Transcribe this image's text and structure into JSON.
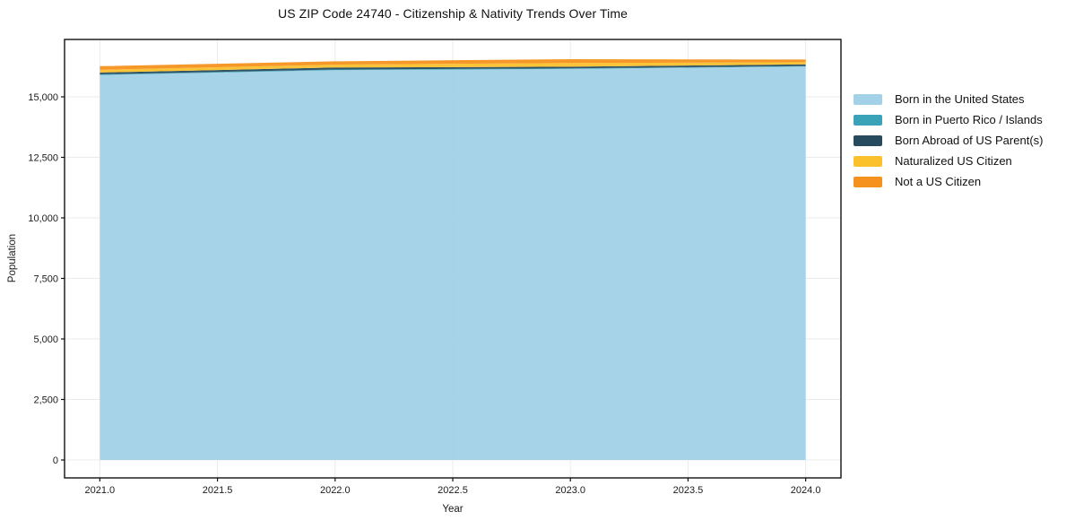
{
  "chart_data": {
    "type": "area",
    "stacked": true,
    "title": "US ZIP Code 24740 - Citizenship & Nativity Trends Over Time",
    "xlabel": "Year",
    "ylabel": "Population",
    "x": [
      2021,
      2022,
      2023,
      2024
    ],
    "series": [
      {
        "name": "Born in the United States",
        "color": "#A2D1E8",
        "values": [
          15900,
          16100,
          16150,
          16250
        ]
      },
      {
        "name": "Born in Puerto Rico / Islands",
        "color": "#3AA3B8",
        "values": [
          30,
          30,
          25,
          20
        ]
      },
      {
        "name": "Born Abroad of US Parent(s)",
        "color": "#264A5E",
        "values": [
          75,
          80,
          70,
          70
        ]
      },
      {
        "name": "Naturalized US Citizen",
        "color": "#FBC12D",
        "values": [
          110,
          120,
          150,
          90
        ]
      },
      {
        "name": "Not a US Citizen",
        "color": "#F5921E",
        "values": [
          150,
          135,
          160,
          110
        ]
      }
    ],
    "xlim": [
      2020.85,
      2024.15
    ],
    "ylim": [
      -740,
      17370
    ],
    "xticks": [
      {
        "value": 2021.0,
        "label": "2021.0"
      },
      {
        "value": 2021.5,
        "label": "2021.5"
      },
      {
        "value": 2022.0,
        "label": "2022.0"
      },
      {
        "value": 2022.5,
        "label": "2022.5"
      },
      {
        "value": 2023.0,
        "label": "2023.0"
      },
      {
        "value": 2023.5,
        "label": "2023.5"
      },
      {
        "value": 2024.0,
        "label": "2024.0"
      }
    ],
    "yticks": [
      {
        "value": 0,
        "label": "0"
      },
      {
        "value": 2500,
        "label": "2,500"
      },
      {
        "value": 5000,
        "label": "5,000"
      },
      {
        "value": 7500,
        "label": "7,500"
      },
      {
        "value": 10000,
        "label": "10,000"
      },
      {
        "value": 12500,
        "label": "12,500"
      },
      {
        "value": 15000,
        "label": "15,000"
      }
    ],
    "grid": true,
    "grid_color": "#ebebeb",
    "spine_color": "#111111",
    "tick_label_color": "#1a1a1a",
    "area_opacity": 0.95,
    "legend_position": "right-outside-vertical"
  }
}
